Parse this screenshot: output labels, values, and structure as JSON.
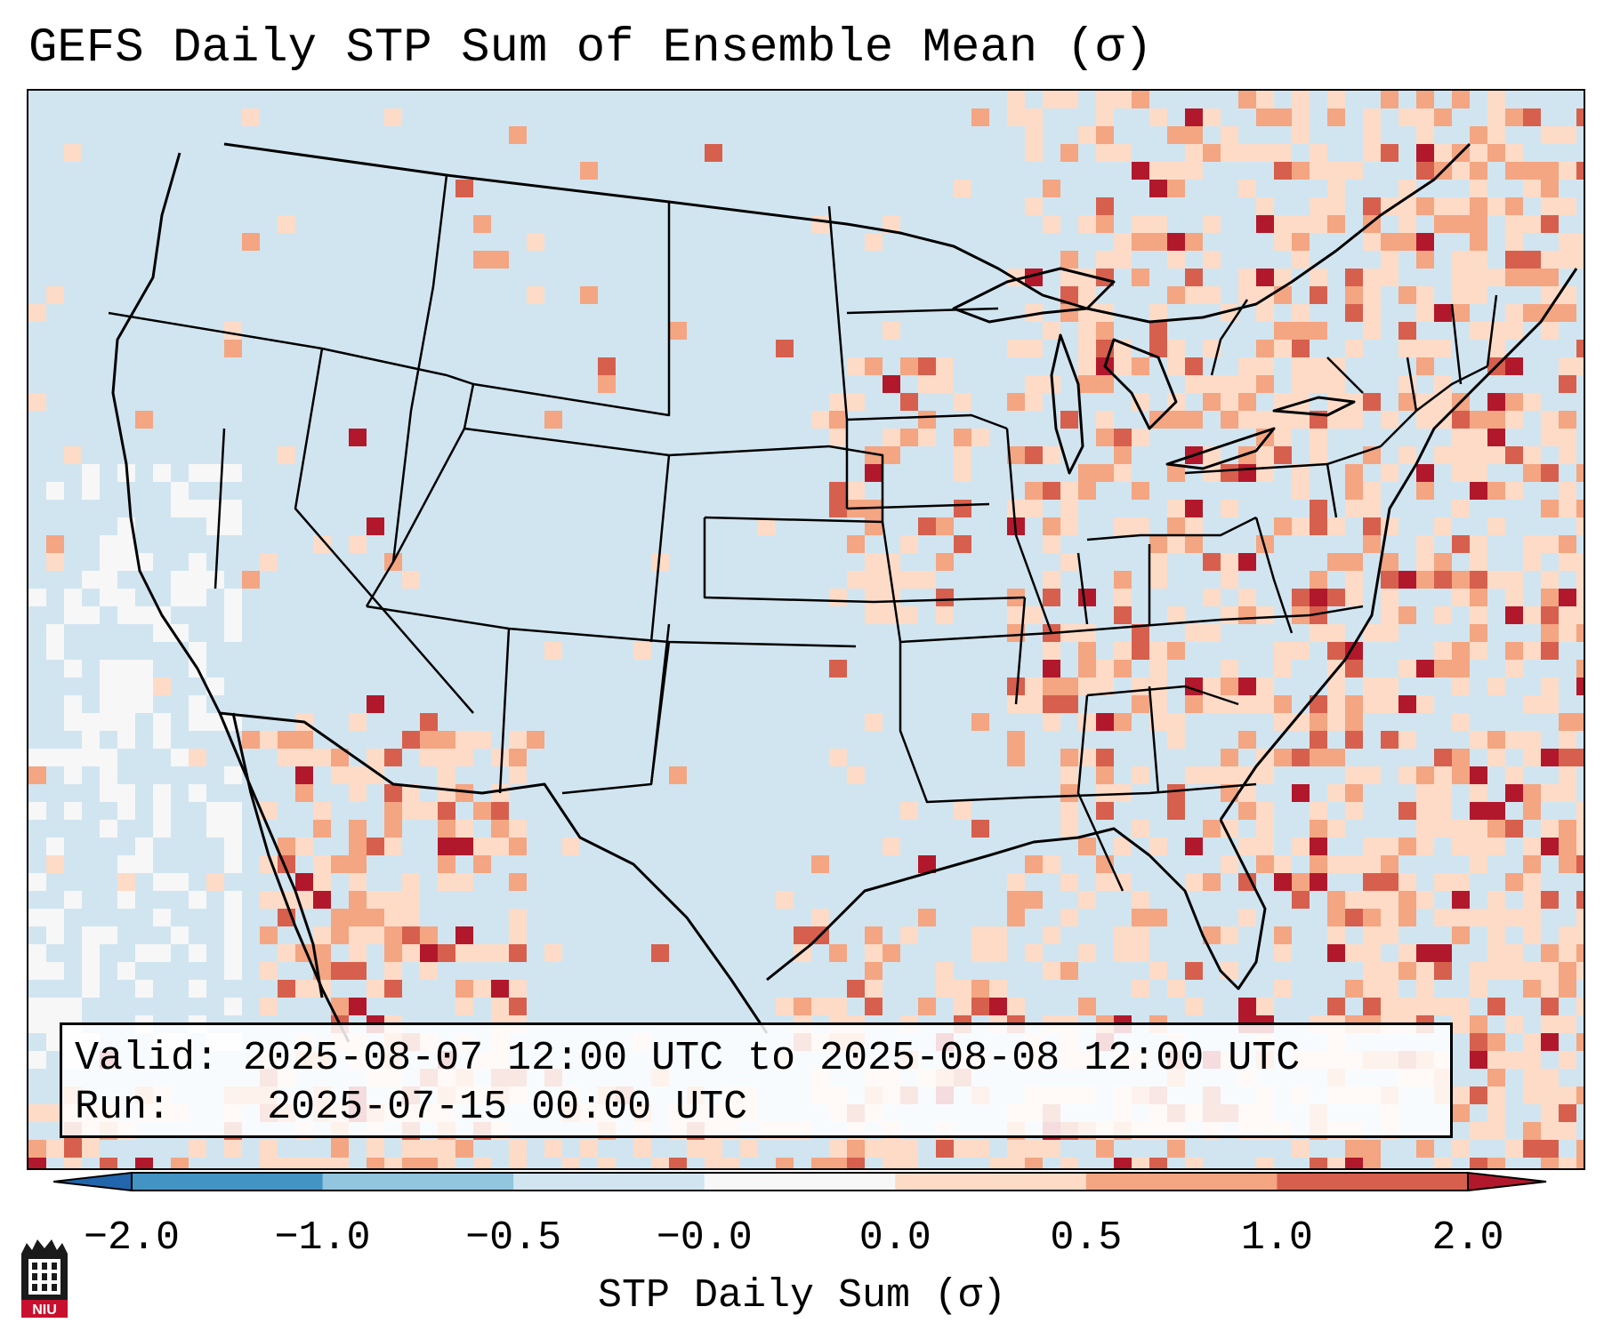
{
  "title": "GEFS Daily STP Sum of Ensemble Mean (σ)",
  "info": {
    "valid_label": "Valid:",
    "valid_value": "2025-08-07 12:00 UTC to 2025-08-08 12:00 UTC",
    "run_label": "Run:",
    "run_value": "2025-07-15 00:00 UTC"
  },
  "colorbar": {
    "label": "STP Daily Sum (σ)",
    "ticks": [
      "−2.0",
      "−1.0",
      "−0.5",
      "−0.0",
      "0.0",
      "0.5",
      "1.0",
      "2.0"
    ],
    "bins": [
      {
        "color": "#4393c3"
      },
      {
        "color": "#92c5de"
      },
      {
        "color": "#d1e5f0"
      },
      {
        "color": "#f7f7f7"
      },
      {
        "color": "#fddbc7"
      },
      {
        "color": "#f4a582"
      },
      {
        "color": "#d6604d"
      }
    ],
    "under_color": "#2166ac",
    "over_color": "#b2182b"
  },
  "logo": {
    "text": "NIU",
    "color": "#c8102e"
  }
}
